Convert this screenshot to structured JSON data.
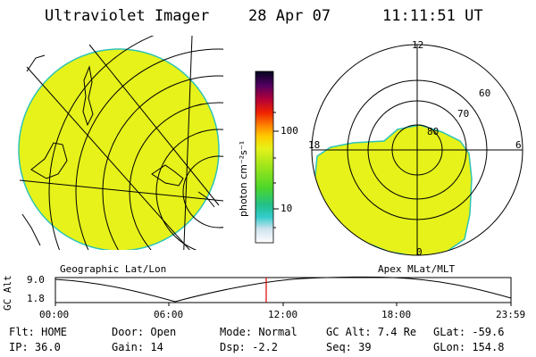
{
  "header": {
    "instrument": "Ultraviolet Imager",
    "date": "28 Apr 07",
    "time": "11:11:51 UT"
  },
  "panels": {
    "left_caption": "Geographic Lat/Lon",
    "right_caption": "Apex MLat/MLT"
  },
  "colorbar": {
    "label": "photon cm⁻²s⁻¹",
    "ticks": [
      "100",
      "10"
    ]
  },
  "polar": {
    "mlt_labels": [
      "12",
      "18",
      "6",
      "0"
    ],
    "lat_labels": [
      "60",
      "70",
      "80"
    ]
  },
  "orbit": {
    "ylabel": "GC Alt",
    "y_ticks": [
      "9.0",
      "1.8"
    ],
    "x_ticks": [
      "00:00",
      "06:00",
      "12:00",
      "18:00",
      "23:59"
    ]
  },
  "status": {
    "flt": "Flt: HOME",
    "door": "Door: Open",
    "mode": "Mode: Normal",
    "gc_alt": "GC Alt: 7.4 Re",
    "glat": "GLat: -59.6",
    "ip": "IP: 36.0",
    "gain": "Gain: 14",
    "dsp": "Dsp:   -2.2",
    "seq": "Seq: 39",
    "glon": "GLon: 154.8"
  },
  "colors": {
    "fill": "#e6f21a",
    "limb": "#2ec4b6",
    "marker": "#e00000"
  }
}
